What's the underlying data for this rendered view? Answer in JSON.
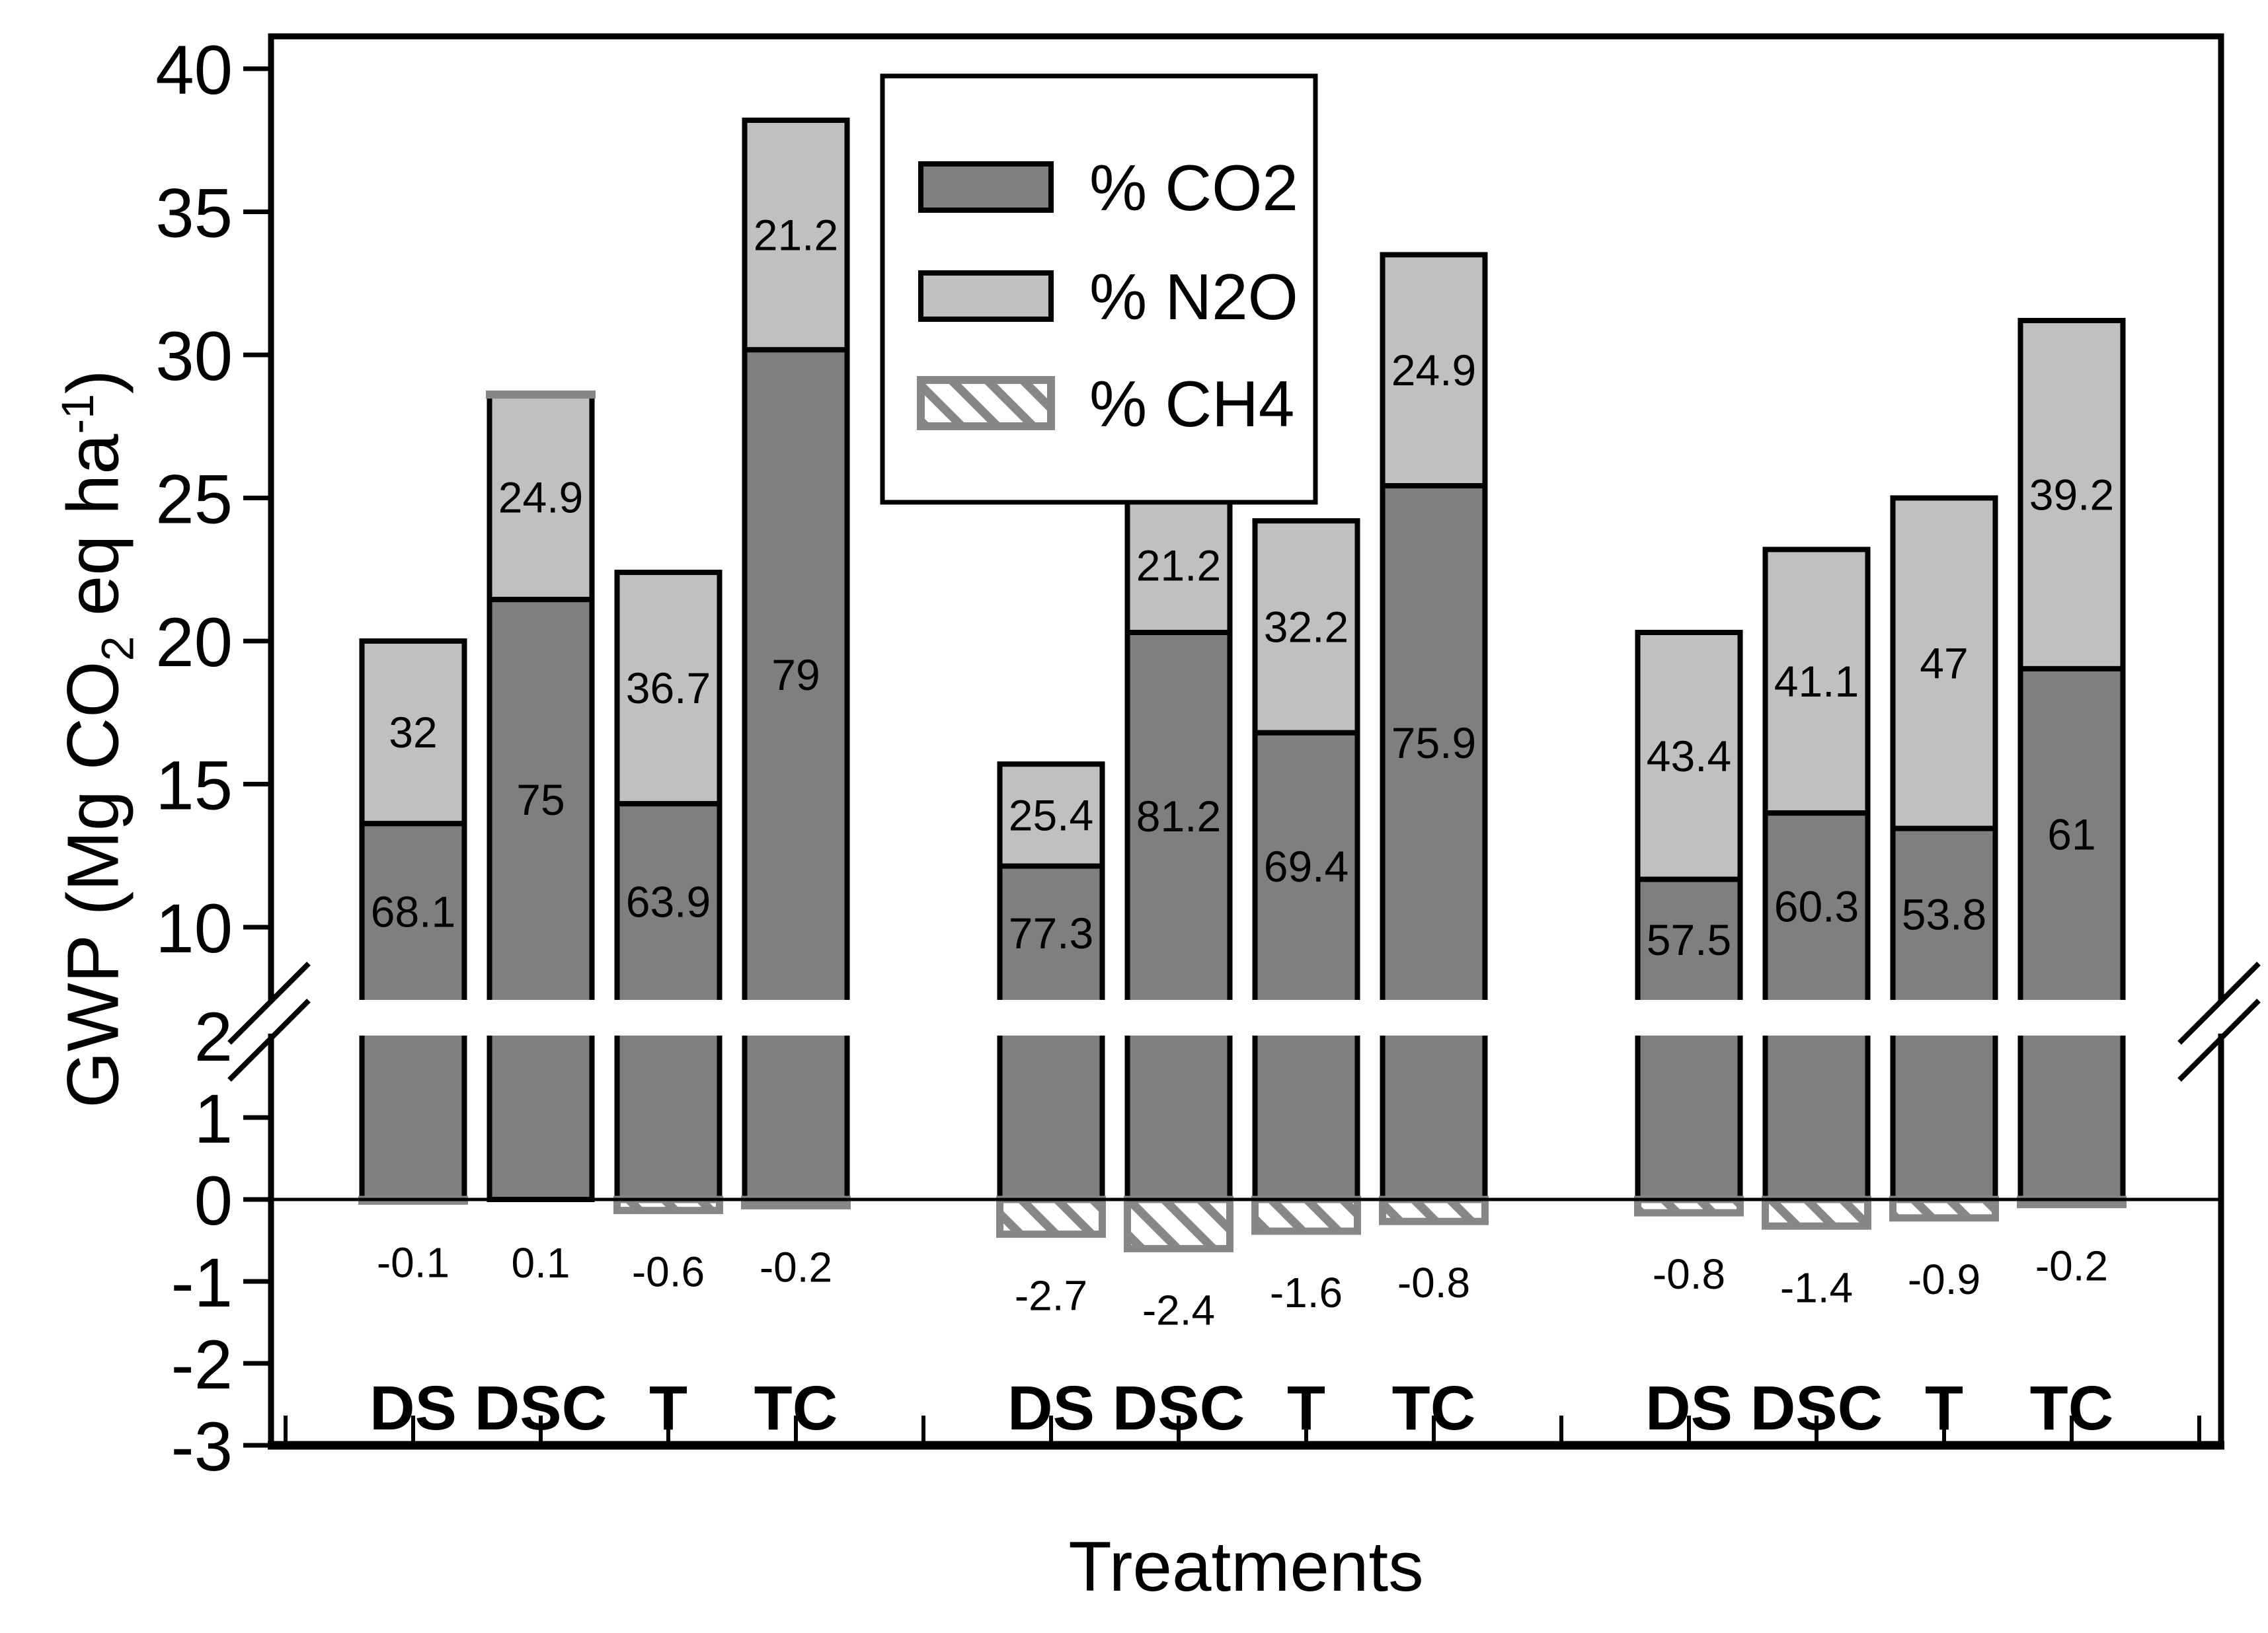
{
  "chart_data": {
    "type": "bar",
    "stacked": true,
    "broken_y_axis": true,
    "xlabel": "Treatments",
    "ylabel": "GWP (Mg CO2 eq ha-1)",
    "ylabel_parts": {
      "prefix": "GWP (Mg CO",
      "sub": "2",
      "mid": " eq ha",
      "sup": "-1",
      "suffix": ")"
    },
    "legend": [
      {
        "label": "% CO2",
        "style": "co2"
      },
      {
        "label": "% N2O",
        "style": "n2o"
      },
      {
        "label": "% CH4",
        "style": "ch4"
      }
    ],
    "legend_position": "upper left inside",
    "upper_axis": {
      "range_visible": [
        10,
        40
      ],
      "tick_labels": [
        "40",
        "35",
        "30",
        "25",
        "20",
        "15",
        "10"
      ],
      "tick_values": [
        40,
        35,
        30,
        25,
        20,
        15,
        10
      ]
    },
    "lower_axis": {
      "range": [
        -3,
        2
      ],
      "tick_labels": [
        "2",
        "1",
        "0",
        "-1",
        "-2",
        "-3"
      ],
      "tick_values": [
        2,
        1,
        0,
        -1,
        -2,
        -3
      ]
    },
    "categories": [
      "DS",
      "DSC",
      "T",
      "TC"
    ],
    "groups": [
      {
        "bars": [
          {
            "category": "DS",
            "total": 20.0,
            "labels": {
              "co2": "68.1",
              "n2o": "32",
              "ch4": "-0.1"
            }
          },
          {
            "category": "DSC",
            "total": 28.6,
            "labels": {
              "co2": "75",
              "n2o": "24.9",
              "ch4": "0.1"
            }
          },
          {
            "category": "T",
            "total": 22.4,
            "labels": {
              "co2": "63.9",
              "n2o": "36.7",
              "ch4": "-0.6"
            }
          },
          {
            "category": "TC",
            "total": 38.2,
            "labels": {
              "co2": "79",
              "n2o": "21.2",
              "ch4": "-0.2"
            }
          }
        ]
      },
      {
        "bars": [
          {
            "category": "DS",
            "total": 15.7,
            "labels": {
              "co2": "77.3",
              "n2o": "25.4",
              "ch4": "-2.7"
            }
          },
          {
            "category": "DSC",
            "total": 25.0,
            "labels": {
              "co2": "81.2",
              "n2o": "21.2",
              "ch4": "-2.4"
            }
          },
          {
            "category": "T",
            "total": 24.2,
            "labels": {
              "co2": "69.4",
              "n2o": "32.2",
              "ch4": "-1.6"
            }
          },
          {
            "category": "TC",
            "total": 33.5,
            "labels": {
              "co2": "75.9",
              "n2o": "24.9",
              "ch4": "-0.8"
            }
          }
        ]
      },
      {
        "bars": [
          {
            "category": "DS",
            "total": 20.3,
            "labels": {
              "co2": "57.5",
              "n2o": "43.4",
              "ch4": "-0.8"
            }
          },
          {
            "category": "DSC",
            "total": 23.2,
            "labels": {
              "co2": "60.3",
              "n2o": "41.1",
              "ch4": "-1.4"
            }
          },
          {
            "category": "T",
            "total": 25.0,
            "labels": {
              "co2": "53.8",
              "n2o": "47",
              "ch4": "-0.9"
            }
          },
          {
            "category": "TC",
            "total": 31.2,
            "labels": {
              "co2": "61",
              "n2o": "39.2",
              "ch4": "-0.2"
            }
          }
        ]
      }
    ],
    "units": "Mg CO2 eq ha-1"
  },
  "colors": {
    "co2": "#7f7f7f",
    "n2o": "#c0c0c0",
    "hatch": "#878787",
    "outline": "#000000",
    "background": "#ffffff"
  }
}
